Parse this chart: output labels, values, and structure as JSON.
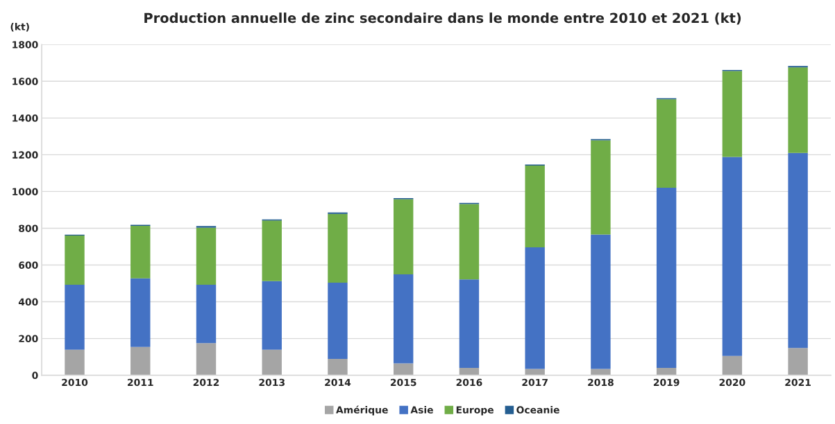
{
  "chart_data": {
    "type": "bar",
    "title": "Production annuelle de zinc secondaire dans le monde entre 2010 et 2021 (kt)",
    "ylabel": "(kt)",
    "categories": [
      "2010",
      "2011",
      "2012",
      "2013",
      "2014",
      "2015",
      "2016",
      "2017",
      "2018",
      "2019",
      "2020",
      "2021"
    ],
    "stacked": true,
    "series": [
      {
        "name": "Amérique",
        "color": "#a5a5a5",
        "values": [
          139,
          154,
          175,
          139,
          89,
          65,
          40,
          34,
          34,
          40,
          105,
          148
        ]
      },
      {
        "name": "Asie",
        "color": "#4472c4",
        "values": [
          354,
          373,
          318,
          373,
          415,
          484,
          482,
          662,
          732,
          980,
          1083,
          1062
        ]
      },
      {
        "name": "Europe",
        "color": "#70ad47",
        "values": [
          267,
          286,
          310,
          330,
          374,
          409,
          410,
          445,
          513,
          482,
          468,
          466
        ]
      },
      {
        "name": "Oceanie",
        "color": "#255e91",
        "values": [
          5,
          6,
          9,
          6,
          8,
          6,
          6,
          6,
          6,
          6,
          5,
          7
        ]
      }
    ],
    "ylim": [
      0,
      1800
    ],
    "yticks": [
      0,
      200,
      400,
      600,
      800,
      1000,
      1200,
      1400,
      1600,
      1800
    ],
    "grid": "y",
    "legend": "bottom"
  }
}
